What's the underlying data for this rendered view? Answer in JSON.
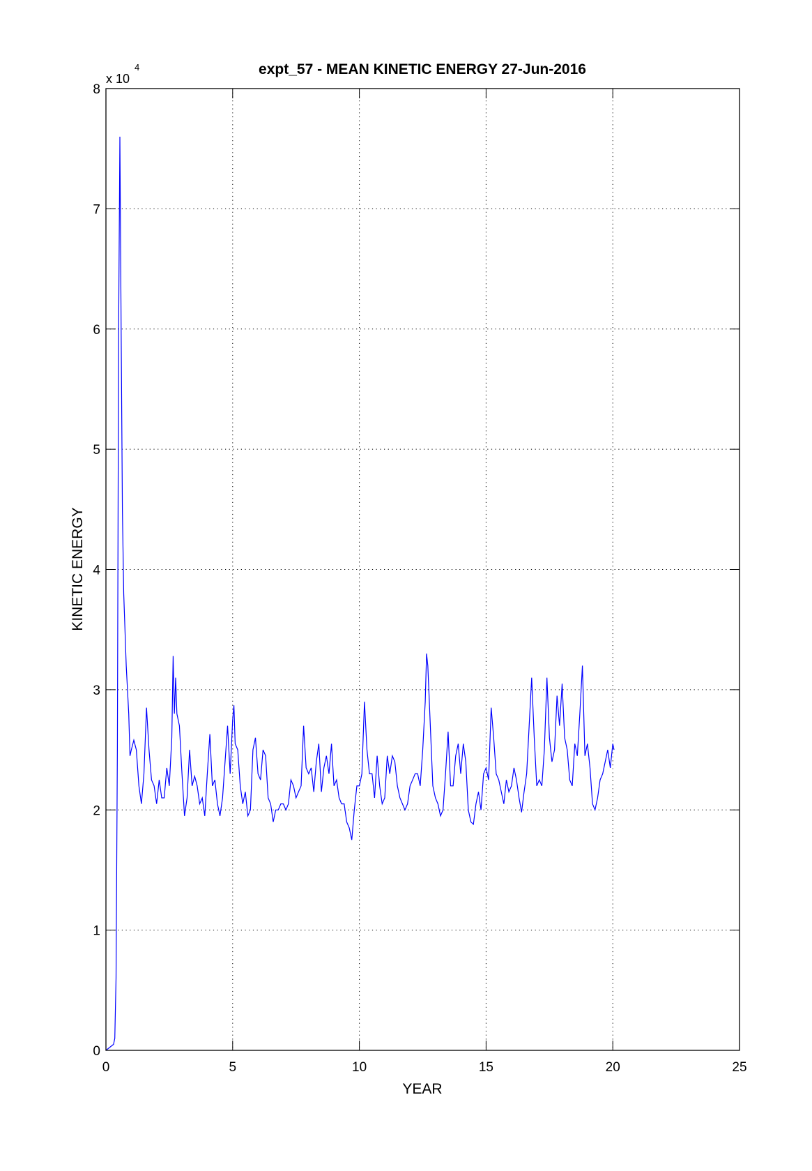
{
  "chart_data": {
    "type": "line",
    "title": "expt_57 - MEAN KINETIC ENERGY 27-Jun-2016",
    "xlabel": "YEAR",
    "ylabel": "KINETIC ENERGY",
    "y_multiplier": "x 10",
    "y_multiplier_exponent": "4",
    "xlim": [
      0,
      25
    ],
    "ylim": [
      0,
      8
    ],
    "xticks": [
      "0",
      "5",
      "10",
      "15",
      "20",
      "25"
    ],
    "yticks": [
      "0",
      "1",
      "2",
      "3",
      "4",
      "5",
      "6",
      "7",
      "8"
    ],
    "grid": true,
    "line_color": "#0000ff",
    "series": [
      {
        "x": [
          0,
          0.3,
          0.35,
          0.4,
          0.45,
          0.5,
          0.55,
          0.6,
          0.65,
          0.7,
          0.8,
          0.9,
          0.95,
          1.0,
          1.1,
          1.2,
          1.3,
          1.4,
          1.5,
          1.6,
          1.7,
          1.8,
          1.9,
          2.0,
          2.1,
          2.2,
          2.3,
          2.4,
          2.5,
          2.6,
          2.65,
          2.7,
          2.75,
          2.8,
          2.9,
          3.0,
          3.1,
          3.2,
          3.3,
          3.4,
          3.5,
          3.6,
          3.7,
          3.8,
          3.9,
          4.0,
          4.1,
          4.2,
          4.3,
          4.4,
          4.5,
          4.6,
          4.7,
          4.8,
          4.9,
          5.0,
          5.05,
          5.1,
          5.2,
          5.3,
          5.4,
          5.5,
          5.6,
          5.7,
          5.8,
          5.9,
          6.0,
          6.1,
          6.2,
          6.3,
          6.4,
          6.5,
          6.6,
          6.7,
          6.8,
          6.9,
          7.0,
          7.1,
          7.2,
          7.3,
          7.4,
          7.5,
          7.6,
          7.7,
          7.8,
          7.9,
          8.0,
          8.1,
          8.2,
          8.3,
          8.4,
          8.5,
          8.6,
          8.7,
          8.8,
          8.9,
          9.0,
          9.1,
          9.2,
          9.3,
          9.4,
          9.5,
          9.6,
          9.7,
          9.8,
          9.9,
          10.0,
          10.1,
          10.2,
          10.3,
          10.4,
          10.5,
          10.6,
          10.7,
          10.8,
          10.9,
          11.0,
          11.1,
          11.2,
          11.3,
          11.4,
          11.5,
          11.6,
          11.7,
          11.8,
          11.9,
          12.0,
          12.1,
          12.2,
          12.3,
          12.4,
          12.5,
          12.6,
          12.65,
          12.7,
          12.8,
          12.9,
          13.0,
          13.1,
          13.2,
          13.3,
          13.4,
          13.5,
          13.6,
          13.7,
          13.8,
          13.9,
          14.0,
          14.1,
          14.2,
          14.3,
          14.4,
          14.5,
          14.6,
          14.7,
          14.8,
          14.9,
          15.0,
          15.1,
          15.2,
          15.3,
          15.4,
          15.5,
          15.6,
          15.7,
          15.8,
          15.9,
          16.0,
          16.1,
          16.2,
          16.3,
          16.4,
          16.5,
          16.6,
          16.7,
          16.8,
          16.9,
          17.0,
          17.1,
          17.2,
          17.3,
          17.4,
          17.5,
          17.6,
          17.7,
          17.8,
          17.9,
          18.0,
          18.1,
          18.2,
          18.3,
          18.4,
          18.5,
          18.6,
          18.7,
          18.8,
          18.9,
          19.0,
          19.1,
          19.2,
          19.3,
          19.4,
          19.5,
          19.6,
          19.7,
          19.8,
          19.9,
          20.0,
          20.05
        ],
        "y": [
          0,
          0.05,
          0.1,
          0.6,
          2.5,
          6.0,
          7.6,
          6.0,
          4.5,
          3.8,
          3.2,
          2.8,
          2.45,
          2.5,
          2.58,
          2.5,
          2.2,
          2.05,
          2.3,
          2.85,
          2.5,
          2.25,
          2.2,
          2.05,
          2.25,
          2.1,
          2.1,
          2.35,
          2.2,
          2.6,
          3.28,
          2.8,
          3.1,
          2.8,
          2.7,
          2.3,
          1.95,
          2.1,
          2.5,
          2.2,
          2.28,
          2.2,
          2.05,
          2.1,
          1.95,
          2.3,
          2.63,
          2.2,
          2.25,
          2.05,
          1.95,
          2.1,
          2.4,
          2.7,
          2.3,
          2.75,
          2.87,
          2.55,
          2.5,
          2.2,
          2.05,
          2.15,
          1.95,
          2.0,
          2.5,
          2.6,
          2.3,
          2.25,
          2.5,
          2.45,
          2.1,
          2.05,
          1.9,
          2.0,
          2.0,
          2.05,
          2.05,
          2.0,
          2.05,
          2.25,
          2.2,
          2.1,
          2.15,
          2.2,
          2.7,
          2.35,
          2.3,
          2.35,
          2.15,
          2.4,
          2.55,
          2.15,
          2.35,
          2.45,
          2.3,
          2.55,
          2.2,
          2.25,
          2.1,
          2.05,
          2.05,
          1.9,
          1.85,
          1.75,
          2.0,
          2.2,
          2.2,
          2.3,
          2.9,
          2.5,
          2.3,
          2.3,
          2.1,
          2.45,
          2.2,
          2.05,
          2.1,
          2.45,
          2.3,
          2.45,
          2.4,
          2.2,
          2.1,
          2.05,
          2.0,
          2.05,
          2.2,
          2.25,
          2.3,
          2.3,
          2.2,
          2.5,
          2.9,
          3.3,
          3.2,
          2.7,
          2.2,
          2.1,
          2.05,
          1.95,
          2.0,
          2.3,
          2.65,
          2.2,
          2.2,
          2.45,
          2.55,
          2.3,
          2.55,
          2.4,
          2.0,
          1.9,
          1.88,
          2.05,
          2.15,
          2.0,
          2.3,
          2.35,
          2.25,
          2.85,
          2.6,
          2.3,
          2.25,
          2.15,
          2.05,
          2.25,
          2.15,
          2.2,
          2.35,
          2.25,
          2.1,
          1.98,
          2.15,
          2.3,
          2.7,
          3.1,
          2.6,
          2.2,
          2.25,
          2.2,
          2.5,
          3.1,
          2.6,
          2.4,
          2.5,
          2.95,
          2.7,
          3.05,
          2.6,
          2.5,
          2.25,
          2.2,
          2.55,
          2.45,
          2.8,
          3.2,
          2.45,
          2.55,
          2.35,
          2.05,
          2.0,
          2.1,
          2.25,
          2.3,
          2.4,
          2.5,
          2.35,
          2.55,
          2.5
        ]
      }
    ]
  }
}
